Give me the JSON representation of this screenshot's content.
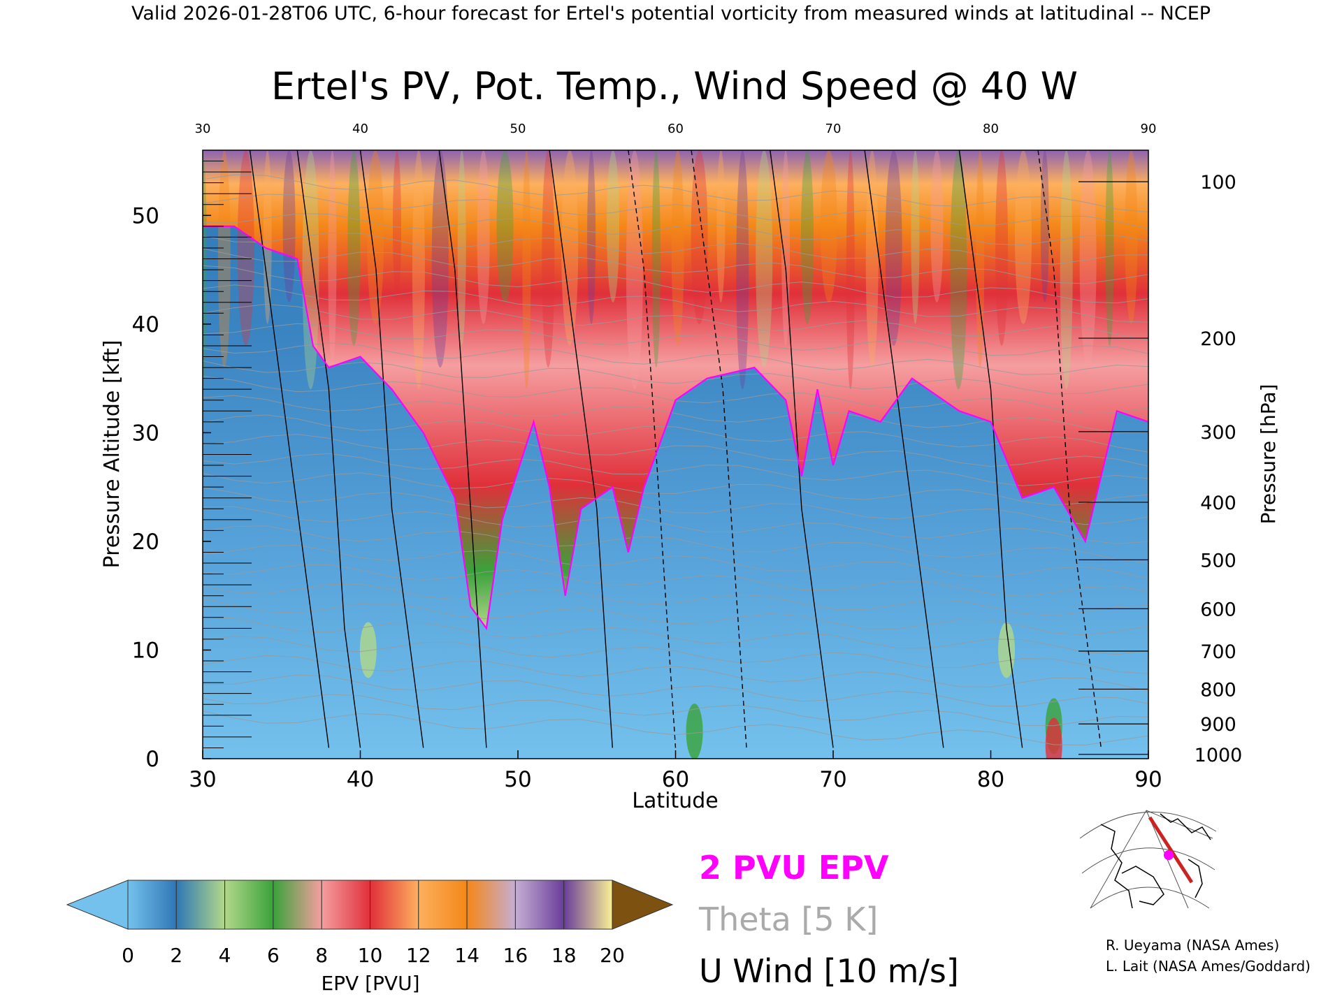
{
  "header": {
    "top_line": "Valid 2026-01-28T06 UTC, 6-hour forecast for Ertel's potential vorticity from measured winds at latitudinal -- NCEP"
  },
  "chart_data": {
    "type": "heatmap",
    "title": "Ertel's PV, Pot. Temp., Wind Speed @ 40 W",
    "xlabel": "Latitude",
    "ylabel": "Pressure Altitude [kft]",
    "y2label": "Pressure [hPa]",
    "xlim": [
      30,
      90
    ],
    "ylim": [
      0,
      56
    ],
    "x_ticks": [
      "30",
      "40",
      "50",
      "60",
      "70",
      "80",
      "90"
    ],
    "y_ticks": [
      "0",
      "10",
      "20",
      "30",
      "40",
      "50"
    ],
    "pressure_ticks": [
      {
        "label": "100",
        "kft": 53.1
      },
      {
        "label": "200",
        "kft": 38.7
      },
      {
        "label": "300",
        "kft": 30.1
      },
      {
        "label": "400",
        "kft": 23.6
      },
      {
        "label": "500",
        "kft": 18.3
      },
      {
        "label": "600",
        "kft": 13.8
      },
      {
        "label": "700",
        "kft": 9.9
      },
      {
        "label": "800",
        "kft": 6.4
      },
      {
        "label": "900",
        "kft": 3.2
      },
      {
        "label": "1000",
        "kft": 0.4
      }
    ],
    "two_pvu_altitude_kft": [
      {
        "lat": 30,
        "kft": 49
      },
      {
        "lat": 32,
        "kft": 49
      },
      {
        "lat": 34,
        "kft": 47
      },
      {
        "lat": 36,
        "kft": 46
      },
      {
        "lat": 37,
        "kft": 38
      },
      {
        "lat": 38,
        "kft": 36
      },
      {
        "lat": 40,
        "kft": 37
      },
      {
        "lat": 42,
        "kft": 34
      },
      {
        "lat": 44,
        "kft": 30
      },
      {
        "lat": 46,
        "kft": 24
      },
      {
        "lat": 47,
        "kft": 14
      },
      {
        "lat": 48,
        "kft": 12
      },
      {
        "lat": 49,
        "kft": 22
      },
      {
        "lat": 51,
        "kft": 31
      },
      {
        "lat": 52,
        "kft": 25
      },
      {
        "lat": 53,
        "kft": 15
      },
      {
        "lat": 54,
        "kft": 23
      },
      {
        "lat": 56,
        "kft": 25
      },
      {
        "lat": 57,
        "kft": 19
      },
      {
        "lat": 58,
        "kft": 25
      },
      {
        "lat": 60,
        "kft": 33
      },
      {
        "lat": 62,
        "kft": 35
      },
      {
        "lat": 65,
        "kft": 36
      },
      {
        "lat": 67,
        "kft": 33
      },
      {
        "lat": 68,
        "kft": 26
      },
      {
        "lat": 69,
        "kft": 34
      },
      {
        "lat": 70,
        "kft": 27
      },
      {
        "lat": 71,
        "kft": 32
      },
      {
        "lat": 73,
        "kft": 31
      },
      {
        "lat": 75,
        "kft": 35
      },
      {
        "lat": 78,
        "kft": 32
      },
      {
        "lat": 80,
        "kft": 31
      },
      {
        "lat": 82,
        "kft": 24
      },
      {
        "lat": 84,
        "kft": 25
      },
      {
        "lat": 86,
        "kft": 20
      },
      {
        "lat": 88,
        "kft": 32
      },
      {
        "lat": 90,
        "kft": 31
      }
    ],
    "colorbar": {
      "label": "EPV [PVU]",
      "ticks": [
        "0",
        "2",
        "4",
        "6",
        "8",
        "10",
        "12",
        "14",
        "16",
        "18",
        "20"
      ],
      "colors": [
        "#74c1ed",
        "#2f77b5",
        "#b2d88a",
        "#3aa23a",
        "#f59ea0",
        "#e0303a",
        "#fdb05e",
        "#f48718",
        "#c5aed4",
        "#6a3d9a",
        "#f8f096",
        "#7d5210"
      ],
      "under_color": "#74c1ed",
      "over_color": "#7d5210"
    },
    "legend": [
      {
        "label": "2 PVU EPV",
        "color": "#ff00ff"
      },
      {
        "label": "Theta [5 K]",
        "color": "#aaaaaa"
      },
      {
        "label": "U Wind [10 m/s]",
        "color": "#000000"
      }
    ]
  },
  "credits": [
    "R. Ueyama (NASA Ames)",
    "L. Lait (NASA Ames/Goddard)"
  ]
}
